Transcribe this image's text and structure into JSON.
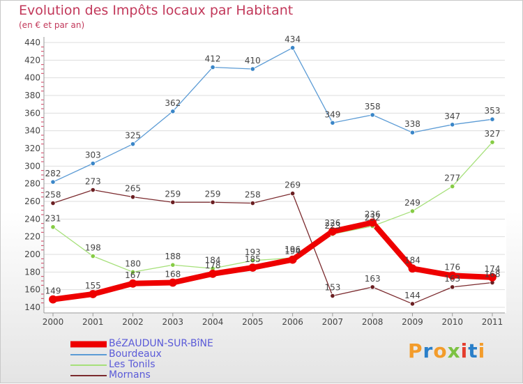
{
  "header": {
    "title": "Evolution des Impôts locaux par Habitant",
    "subtitle": "(en € et par an)"
  },
  "logo": {
    "text": "Proxiti",
    "colors": [
      "#f39c2b",
      "#2a7fc9",
      "#f39c2b",
      "#7cc242",
      "#e43d2f",
      "#2a7fc9",
      "#f39c2b"
    ]
  },
  "colors": {
    "title": "#c2385a",
    "grid": "#dddddd",
    "axis": "#9a9a9a",
    "legend_text": "#5a5ad8"
  },
  "chart_data": {
    "type": "line",
    "title": "Evolution des Impôts locaux par Habitant",
    "subtitle": "(en € et par an)",
    "xlabel": "",
    "ylabel": "",
    "x": [
      "2000",
      "2001",
      "2002",
      "2003",
      "2004",
      "2005",
      "2006",
      "2007",
      "2008",
      "2009",
      "2010",
      "2011"
    ],
    "ylim": [
      140,
      440
    ],
    "yticks": [
      140,
      160,
      180,
      200,
      220,
      240,
      260,
      280,
      300,
      320,
      340,
      360,
      380,
      400,
      420,
      440
    ],
    "grid": true,
    "legend_position": "bottom-left",
    "series": [
      {
        "name": "Bourdeaux",
        "color": "#5b9bd5",
        "marker": "#3a86c8",
        "weight": "thin",
        "values": [
          282,
          303,
          325,
          362,
          412,
          410,
          434,
          349,
          358,
          338,
          347,
          353
        ]
      },
      {
        "name": "Mornans",
        "color": "#7b2a2e",
        "marker": "#6b1f22",
        "weight": "thin",
        "values": [
          258,
          273,
          265,
          259,
          259,
          258,
          269,
          153,
          163,
          144,
          163,
          168
        ]
      },
      {
        "name": "Les Tonils",
        "color": "#a6e07a",
        "marker": "#86cc44",
        "weight": "thin",
        "values": [
          231,
          198,
          180,
          188,
          184,
          193,
          196,
          223,
          232,
          249,
          277,
          327
        ]
      },
      {
        "name": "BéZAUDUN-SUR-BîNE",
        "color": "#ee0000",
        "marker": "#ee0000",
        "weight": "thick",
        "values": [
          149,
          155,
          167,
          168,
          178,
          185,
          194,
          226,
          236,
          184,
          176,
          174
        ]
      }
    ],
    "legend_order": [
      "BéZAUDUN-SUR-BîNE",
      "Bourdeaux",
      "Les Tonils",
      "Mornans"
    ]
  }
}
